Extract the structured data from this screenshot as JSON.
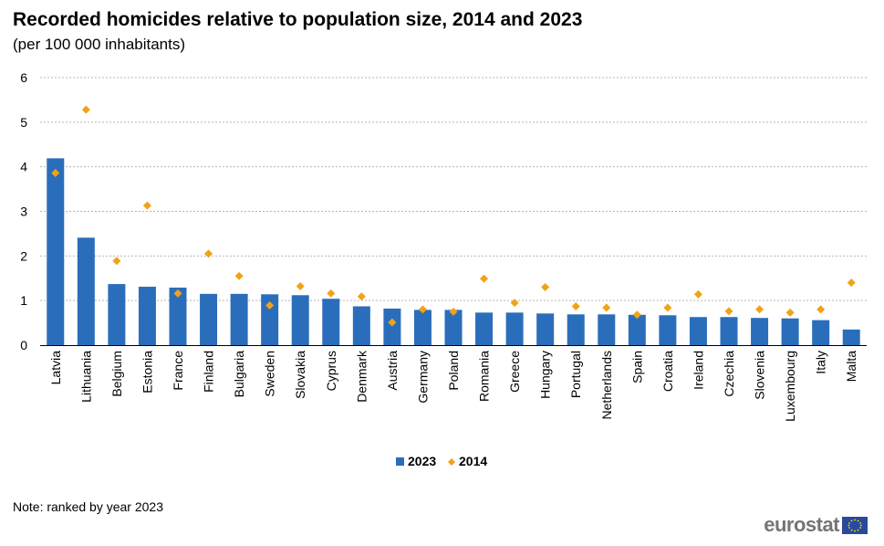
{
  "chart_data": {
    "type": "bar",
    "title": "Recorded homicides relative to population size, 2014 and 2023",
    "subtitle": "(per 100 000 inhabitants)",
    "xlabel": "",
    "ylabel": "",
    "ylim": [
      0,
      6
    ],
    "yticks": [
      0,
      1,
      2,
      3,
      4,
      5,
      6
    ],
    "grid": true,
    "legend_position": "bottom-center",
    "categories": [
      "Latvia",
      "Lithuania",
      "Belgium",
      "Estonia",
      "France",
      "Finland",
      "Bulgaria",
      "Sweden",
      "Slovakia",
      "Cyprus",
      "Denmark",
      "Austria",
      "Germany",
      "Poland",
      "Romania",
      "Greece",
      "Hungary",
      "Portugal",
      "Netherlands",
      "Spain",
      "Croatia",
      "Ireland",
      "Czechia",
      "Slovenia",
      "Luxembourg",
      "Italy",
      "Malta"
    ],
    "series": [
      {
        "name": "2023",
        "type": "bar",
        "color": "#2a6ebb",
        "values": [
          4.19,
          2.41,
          1.37,
          1.31,
          1.29,
          1.15,
          1.15,
          1.14,
          1.12,
          1.04,
          0.87,
          0.82,
          0.79,
          0.79,
          0.73,
          0.73,
          0.71,
          0.69,
          0.69,
          0.68,
          0.67,
          0.63,
          0.63,
          0.61,
          0.6,
          0.56,
          0.35
        ]
      },
      {
        "name": "2014",
        "type": "marker",
        "marker": "diamond",
        "color": "#f0a315",
        "values": [
          3.86,
          5.28,
          1.89,
          3.13,
          1.16,
          2.05,
          1.55,
          0.89,
          1.32,
          1.16,
          1.09,
          0.51,
          0.8,
          0.75,
          1.49,
          0.95,
          1.3,
          0.87,
          0.84,
          0.68,
          0.84,
          1.14,
          0.76,
          0.8,
          0.73,
          0.8,
          1.4
        ]
      }
    ]
  },
  "note": "Note: ranked by year 2023",
  "logo": {
    "text": "eurostat",
    "icon": "eu-flag-icon"
  }
}
